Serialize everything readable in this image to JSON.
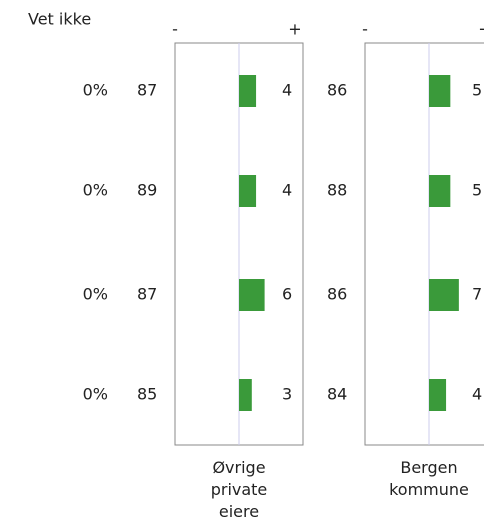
{
  "chart_data": [
    {
      "type": "text-column",
      "title": "Vet ikke",
      "values": [
        0,
        0,
        0,
        0
      ],
      "value_labels": [
        "0%",
        "0%",
        "0%",
        "0%"
      ]
    },
    {
      "type": "bar",
      "title": "Øvrige private eiere",
      "axis_labels": [
        "-",
        "+"
      ],
      "left_values": [
        87,
        89,
        87,
        85
      ],
      "values": [
        4,
        4,
        6,
        3
      ],
      "color": "#3a9a3a",
      "xlim": [
        -15,
        15
      ]
    },
    {
      "type": "bar",
      "title": "Bergen kommune",
      "axis_labels": [
        "-",
        "+"
      ],
      "left_values": [
        86,
        88,
        86,
        84
      ],
      "values": [
        5,
        5,
        7,
        4
      ],
      "color": "#3a9a3a",
      "xlim": [
        -15,
        15
      ]
    }
  ]
}
